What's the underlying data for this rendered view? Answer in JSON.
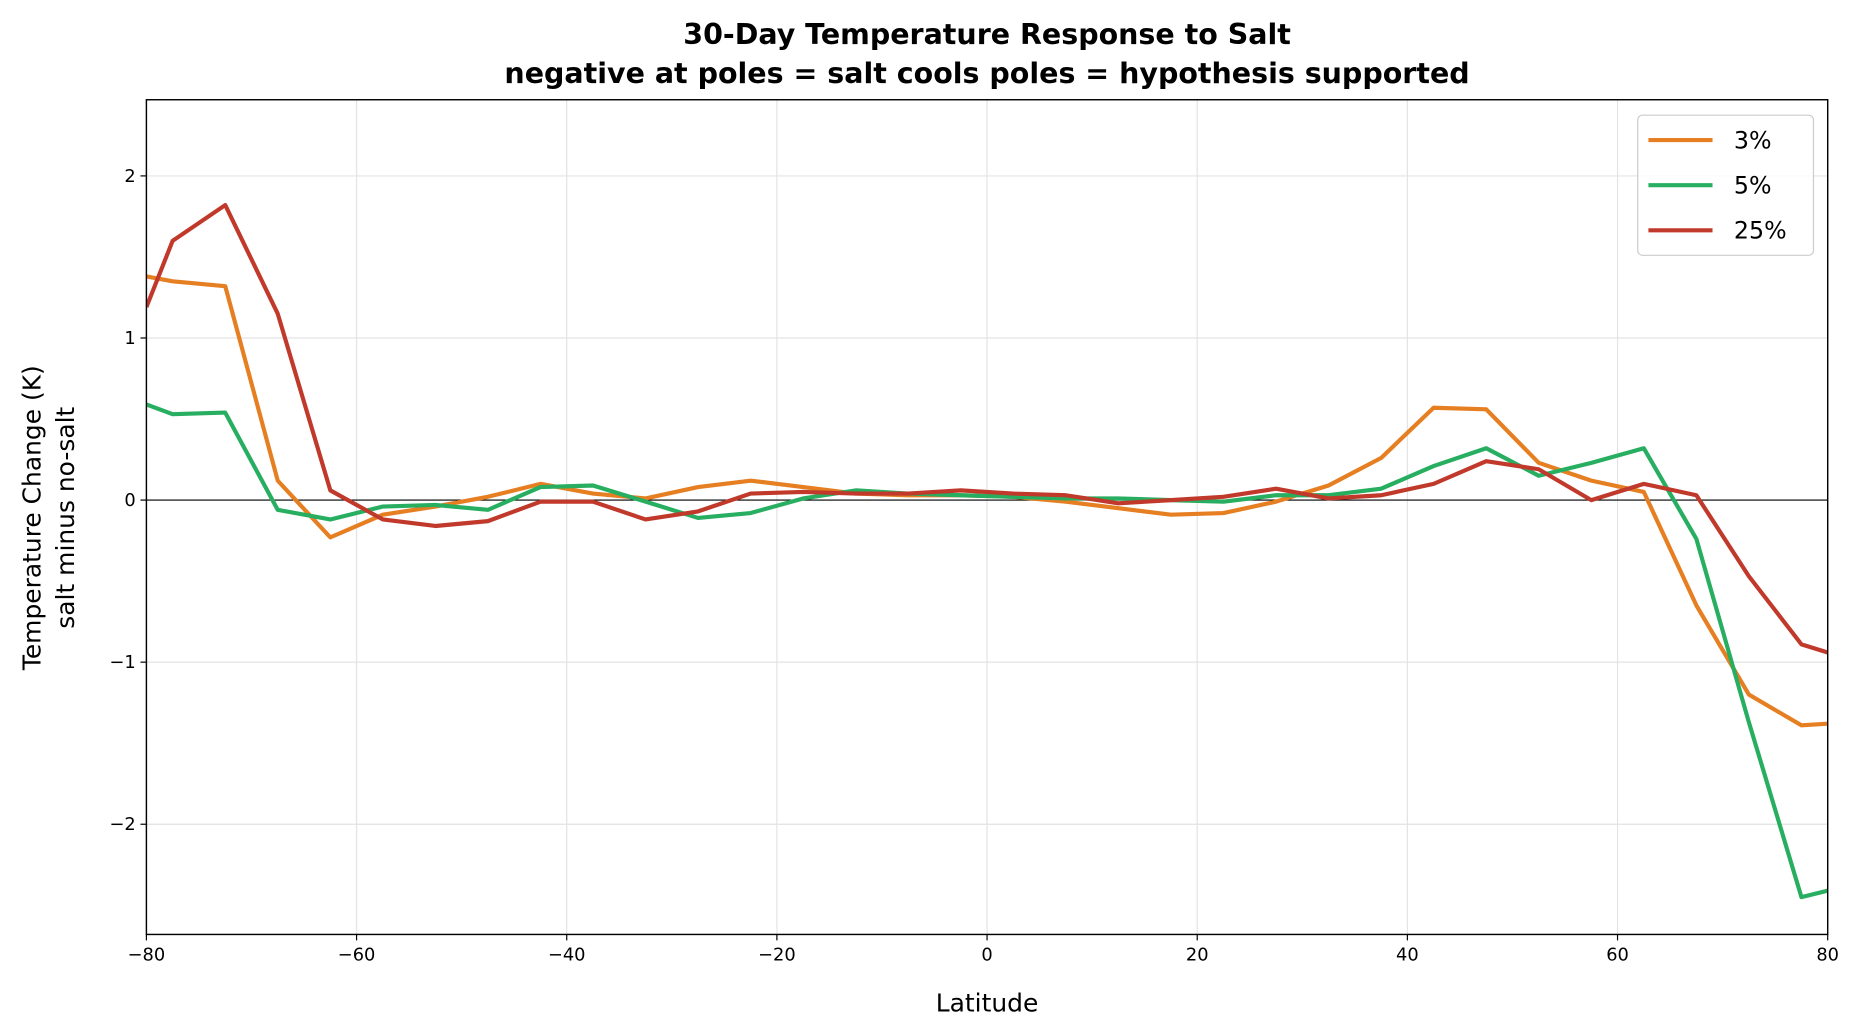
{
  "chart_data": {
    "type": "line",
    "title": "30-Day Temperature Response to Salt",
    "subtitle": "negative at poles = salt cools poles = hypothesis supported",
    "xlabel": "Latitude",
    "ylabel": "Temperature Change (K)",
    "ylabel2": "salt minus no-salt",
    "xlim": [
      -80,
      80
    ],
    "ylim": [
      -2.68,
      2.47
    ],
    "xticks": [
      -80,
      -60,
      -40,
      -20,
      0,
      20,
      40,
      60,
      80
    ],
    "yticks": [
      -2,
      -1,
      0,
      1,
      2
    ],
    "xtick_labels": [
      "−80",
      "−60",
      "−40",
      "−20",
      "0",
      "20",
      "40",
      "60",
      "80"
    ],
    "ytick_labels": [
      "−2",
      "−1",
      "0",
      "1",
      "2"
    ],
    "grid": true,
    "zero_line": true,
    "legend_placement": "top-right",
    "x": [
      -80,
      -77.5,
      -72.5,
      -67.5,
      -62.5,
      -57.5,
      -52.5,
      -47.5,
      -42.5,
      -37.5,
      -32.5,
      -27.5,
      -22.5,
      -17.5,
      -12.5,
      -7.5,
      -2.5,
      2.5,
      7.5,
      12.5,
      17.5,
      22.5,
      27.5,
      32.5,
      37.5,
      42.5,
      47.5,
      52.5,
      57.5,
      62.5,
      67.5,
      72.5,
      77.5,
      80
    ],
    "series": [
      {
        "name": "3%",
        "color": "#e67e22",
        "values": [
          1.38,
          1.35,
          1.32,
          0.12,
          -0.23,
          -0.09,
          -0.04,
          0.02,
          0.1,
          0.04,
          0.01,
          0.08,
          0.12,
          0.08,
          0.04,
          0.03,
          0.03,
          0.02,
          -0.01,
          -0.05,
          -0.09,
          -0.08,
          -0.01,
          0.09,
          0.26,
          0.57,
          0.56,
          0.23,
          0.12,
          0.05,
          -0.65,
          -1.2,
          -1.39,
          -1.38
        ]
      },
      {
        "name": "5%",
        "color": "#27ae60",
        "values": [
          0.59,
          0.53,
          0.54,
          -0.06,
          -0.12,
          -0.04,
          -0.03,
          -0.06,
          0.08,
          0.09,
          -0.01,
          -0.11,
          -0.08,
          0.01,
          0.06,
          0.04,
          0.03,
          0.02,
          0.01,
          0.01,
          0.0,
          -0.01,
          0.03,
          0.03,
          0.07,
          0.21,
          0.32,
          0.15,
          0.23,
          0.32,
          -0.24,
          -1.37,
          -2.45,
          -2.41
        ]
      },
      {
        "name": "25%",
        "color": "#c0392b",
        "values": [
          1.19,
          1.6,
          1.82,
          1.15,
          0.06,
          -0.12,
          -0.16,
          -0.13,
          -0.01,
          -0.01,
          -0.12,
          -0.07,
          0.04,
          0.05,
          0.04,
          0.04,
          0.06,
          0.04,
          0.03,
          -0.02,
          0.0,
          0.02,
          0.07,
          0.01,
          0.03,
          0.1,
          0.24,
          0.19,
          0.0,
          0.1,
          0.03,
          -0.47,
          -0.89,
          -0.94
        ]
      }
    ]
  }
}
